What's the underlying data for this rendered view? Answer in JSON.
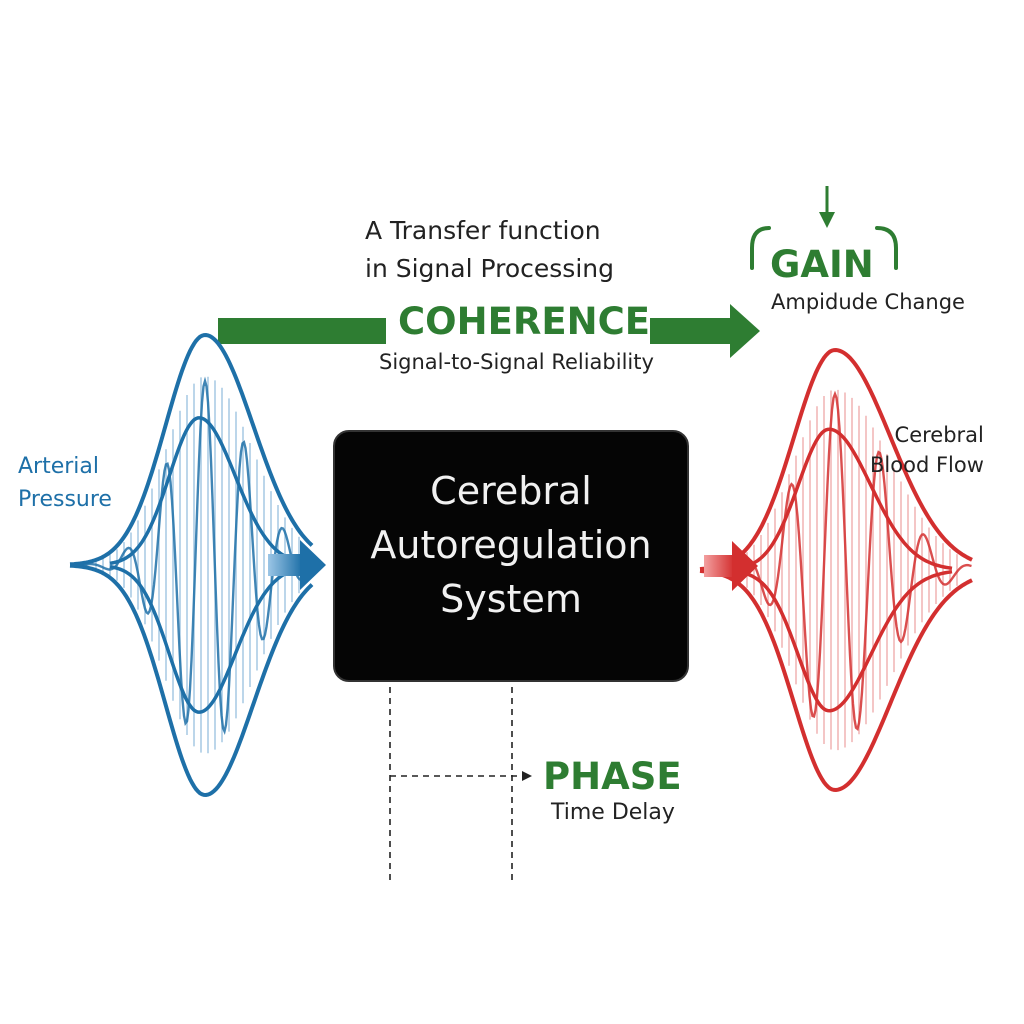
{
  "title": {
    "line1": "A Transfer function",
    "line2": "in Signal Processing"
  },
  "coherence": {
    "label": "COHERENCE",
    "sub": "Signal-to-Signal Reliability"
  },
  "gain": {
    "label": "GAIN",
    "sub": "Ampidude Change"
  },
  "input": {
    "line1": "Arterial",
    "line2": "Pressure"
  },
  "output": {
    "line1": "Cerebral",
    "line2": "Blood Flow"
  },
  "system": {
    "line1": "Cerebral",
    "line2": "Autoregulation",
    "line3": "System"
  },
  "phase": {
    "label": "PHASE",
    "sub": "Time Delay"
  },
  "colors": {
    "green": "#2e7d32",
    "blue": "#1e70a8",
    "red": "#d32f2f",
    "box": "#050505"
  }
}
